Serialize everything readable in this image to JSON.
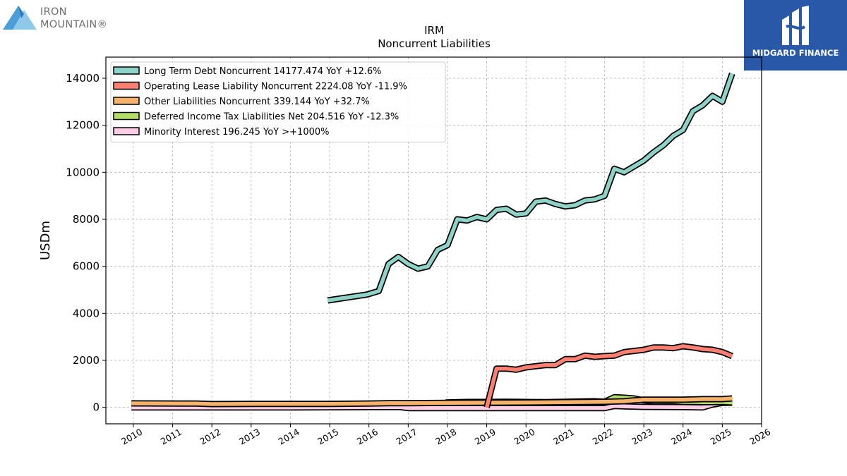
{
  "branding": {
    "left_logo_text": [
      "IRON",
      "MOUNTAIN®"
    ],
    "right_logo_text": "MIDGARD FINANCE"
  },
  "chart_data": {
    "type": "line",
    "title": "IRM",
    "subtitle": "Noncurrent  Liabilities",
    "xlabel": "",
    "ylabel": "USDm",
    "xlim": [
      2009.3,
      2026.0
    ],
    "ylim": [
      -700,
      14900
    ],
    "grid": true,
    "legend_position": "top-left",
    "x_ticks": [
      2010,
      2011,
      2012,
      2013,
      2014,
      2015,
      2016,
      2017,
      2018,
      2019,
      2020,
      2021,
      2022,
      2023,
      2024,
      2025,
      2026
    ],
    "y_ticks": [
      0,
      2000,
      4000,
      6000,
      8000,
      10000,
      12000,
      14000
    ],
    "series": [
      {
        "name": "Long Term Debt Noncurrent",
        "legend_label": "Long Term Debt Noncurrent  14177.474 YoY +12.6%",
        "color": "#8dd3c7",
        "x": [
          2014.95,
          2015.95,
          2016.25,
          2016.5,
          2016.75,
          2017.0,
          2017.25,
          2017.5,
          2017.75,
          2018.0,
          2018.25,
          2018.5,
          2018.75,
          2019.0,
          2019.25,
          2019.5,
          2019.75,
          2020.0,
          2020.25,
          2020.5,
          2020.75,
          2021.0,
          2021.25,
          2021.5,
          2021.75,
          2022.0,
          2022.25,
          2022.5,
          2022.75,
          2023.0,
          2023.25,
          2023.5,
          2023.75,
          2024.0,
          2024.25,
          2024.5,
          2024.75,
          2025.0,
          2025.25
        ],
        "y": [
          4550,
          4800,
          4950,
          6100,
          6400,
          6100,
          5900,
          6000,
          6700,
          6900,
          8000,
          7950,
          8100,
          8000,
          8400,
          8450,
          8200,
          8250,
          8750,
          8800,
          8650,
          8550,
          8600,
          8800,
          8850,
          9000,
          10150,
          10000,
          10250,
          10500,
          10850,
          11150,
          11550,
          11800,
          12600,
          12850,
          13250,
          13000,
          14200
        ]
      },
      {
        "name": "Operating Lease Liability Noncurrent",
        "legend_label": "Operating Lease Liability Noncurrent  2224.08 YoY -11.9%",
        "color": "#fb8072",
        "x": [
          2019.0,
          2019.25,
          2019.5,
          2019.75,
          2020.0,
          2020.25,
          2020.5,
          2020.75,
          2021.0,
          2021.25,
          2021.5,
          2021.75,
          2022.0,
          2022.25,
          2022.5,
          2022.75,
          2023.0,
          2023.25,
          2023.5,
          2023.75,
          2024.0,
          2024.25,
          2024.5,
          2024.75,
          2025.0,
          2025.25
        ],
        "y": [
          0,
          1650,
          1650,
          1600,
          1700,
          1750,
          1800,
          1800,
          2050,
          2050,
          2200,
          2150,
          2180,
          2200,
          2350,
          2400,
          2450,
          2550,
          2550,
          2520,
          2600,
          2550,
          2480,
          2450,
          2350,
          2180
        ]
      },
      {
        "name": "Other Liabilities Noncurrent",
        "legend_label": "Other Liabilities Noncurrent  339.144 YoY +32.7%",
        "color": "#f6b26b",
        "x": [
          2009.95,
          2011.6,
          2012.0,
          2013.0,
          2014.0,
          2015.0,
          2016.0,
          2016.5,
          2017.0,
          2018.0,
          2019.0,
          2020.0,
          2021.0,
          2022.0,
          2022.5,
          2022.75,
          2023.0,
          2023.5,
          2024.0,
          2024.5,
          2024.75,
          2025.0,
          2025.25
        ],
        "y": [
          170,
          160,
          140,
          150,
          150,
          150,
          160,
          180,
          180,
          190,
          200,
          210,
          220,
          240,
          260,
          300,
          330,
          330,
          330,
          350,
          350,
          350,
          380
        ]
      },
      {
        "name": "Deferred Income Tax Liabilities Net",
        "legend_label": "Deferred Income Tax Liabilities Net  204.516 YoY -12.3%",
        "color": "#b3de69",
        "x": [
          2017.95,
          2018.5,
          2019.0,
          2019.5,
          2020.0,
          2020.5,
          2021.0,
          2021.5,
          2021.75,
          2022.0,
          2022.25,
          2022.5,
          2022.75,
          2023.0,
          2023.25,
          2023.5,
          2023.75,
          2024.0,
          2024.25,
          2024.5,
          2024.75,
          2025.0,
          2025.25
        ],
        "y": [
          210,
          230,
          230,
          240,
          230,
          220,
          240,
          250,
          260,
          240,
          430,
          410,
          380,
          300,
          260,
          260,
          260,
          230,
          230,
          220,
          220,
          230,
          205
        ]
      },
      {
        "name": "Minority Interest",
        "legend_label": "Minority Interest  196.245 YoY >+1000%",
        "color": "#fccde5",
        "x": [
          2009.95,
          2012.0,
          2014.0,
          2016.0,
          2016.8,
          2017.0,
          2018.0,
          2019.0,
          2020.0,
          2021.0,
          2022.0,
          2022.25,
          2022.5,
          2023.0,
          2024.0,
          2024.5,
          2024.75,
          2025.0,
          2025.25
        ],
        "y": [
          0,
          0,
          0,
          10,
          10,
          -30,
          -30,
          -30,
          -30,
          -30,
          -30,
          60,
          40,
          20,
          10,
          0,
          120,
          190,
          196
        ]
      }
    ]
  }
}
